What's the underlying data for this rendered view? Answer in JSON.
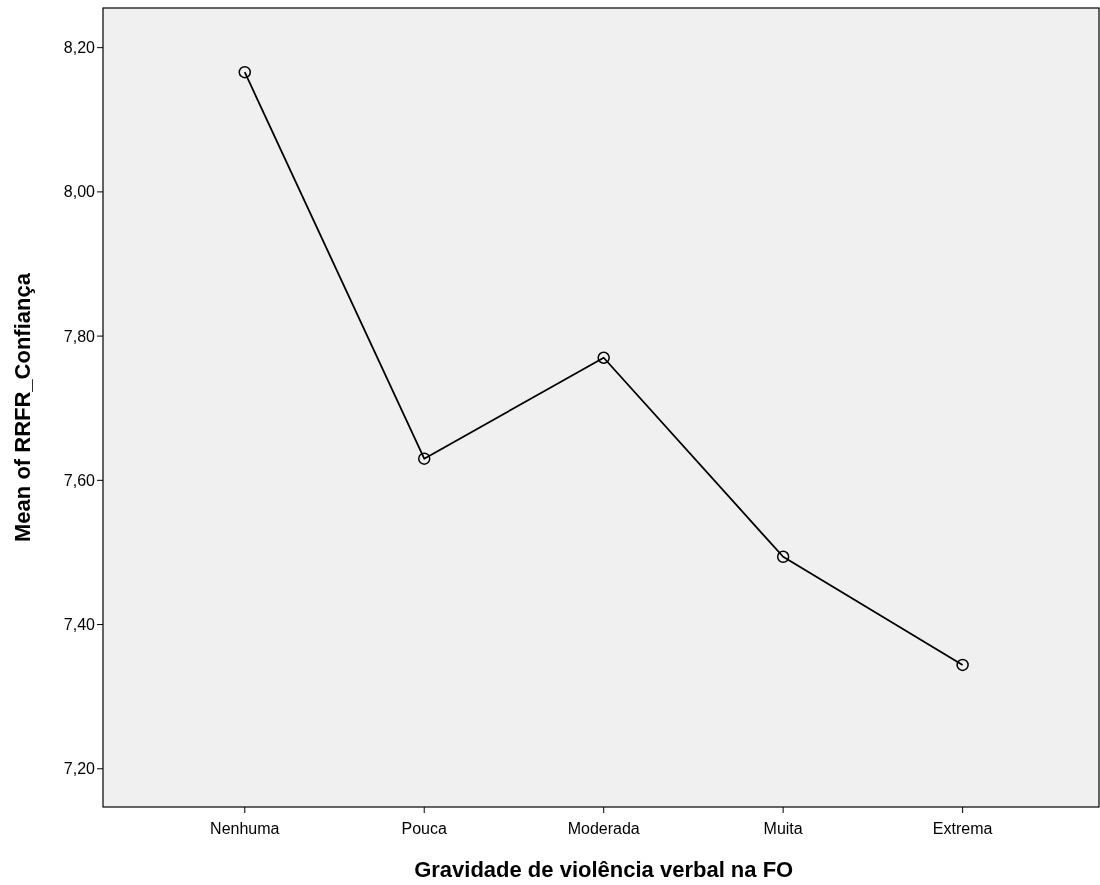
{
  "chart_data": {
    "type": "line",
    "xlabel": "Gravidade de violência verbal na FO",
    "ylabel": "Mean of RRFR_Confiança",
    "categories": [
      "Nenhuma",
      "Pouca",
      "Moderada",
      "Muita",
      "Extrema"
    ],
    "series": [
      {
        "color": "#000000",
        "values": [
          8.166,
          7.63,
          7.77,
          7.494,
          7.344
        ]
      }
    ],
    "ylim": [
      7.147,
      8.255
    ],
    "yticks": [
      {
        "value": 7.2,
        "label": "7,20"
      },
      {
        "value": 7.4,
        "label": "7,40"
      },
      {
        "value": 7.6,
        "label": "7,60"
      },
      {
        "value": 7.8,
        "label": "7,80"
      },
      {
        "value": 8.0,
        "label": "8,00"
      },
      {
        "value": 8.2,
        "label": "8,20"
      }
    ],
    "marker": "circle",
    "line_style": "solid",
    "grid": false
  }
}
